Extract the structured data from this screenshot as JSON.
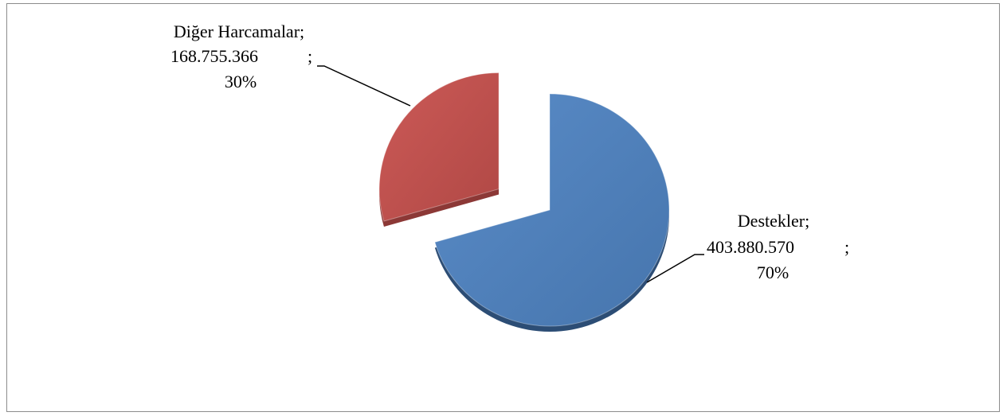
{
  "chart_data": {
    "type": "pie",
    "title": "",
    "three_d": true,
    "start_angle_deg": 0,
    "series": [
      {
        "values": [
          403880570,
          168755366
        ],
        "categories": [
          "Destekler",
          "Diğer Harcamalar"
        ]
      }
    ],
    "slices": [
      {
        "category": "Destekler",
        "value": 403880570,
        "percent": 70,
        "value_label": "403.880.570",
        "separator": ";",
        "percent_label": "70%",
        "color": "#4f81bd",
        "side_color": "#2c4d75",
        "exploded": false
      },
      {
        "category": "Diğer Harcamalar",
        "value": 168755366,
        "percent": 30,
        "value_label": "168.755.366",
        "separator": ";",
        "percent_label": "30%",
        "color": "#c0504d",
        "side_color": "#8c3836",
        "exploded": true
      }
    ],
    "data_labels": {
      "Destekler": {
        "line1": "Destekler;",
        "value": "403.880.570",
        "sep": ";",
        "pct": "70%"
      },
      "Diğer Harcamalar": {
        "line1": "Diğer Harcamalar;",
        "value": "168.755.366",
        "sep": ";",
        "pct": "30%"
      }
    },
    "legend": "none",
    "grid": false,
    "border_color": "#8c8c8c"
  }
}
